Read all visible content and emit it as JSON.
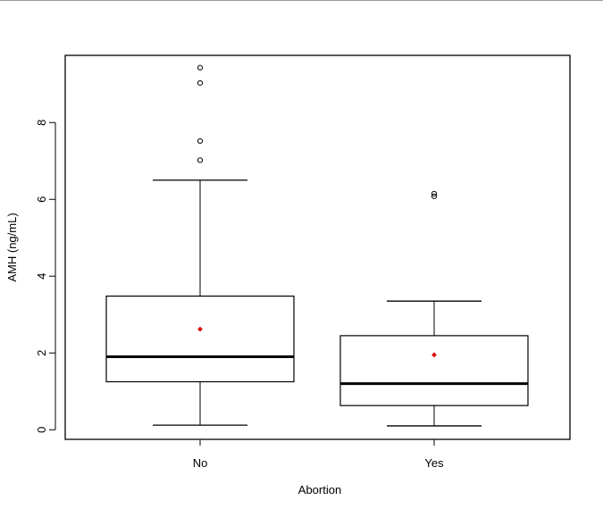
{
  "chart_data": {
    "type": "boxplot",
    "title": "",
    "xlabel": "Abortion",
    "ylabel": "AMH (ng/mL)",
    "categories": [
      "No",
      "Yes"
    ],
    "y_ticks": [
      "0",
      "2",
      "4",
      "6",
      "8"
    ],
    "ylim": [
      -0.25,
      9.75
    ],
    "grid": false,
    "legend": "none",
    "boxes": [
      {
        "category": "No",
        "whisker_low": 0.12,
        "q1": 1.25,
        "median": 1.9,
        "q3": 3.48,
        "whisker_high": 6.5,
        "mean": 2.62,
        "outliers": [
          7.02,
          7.52,
          9.03,
          9.43
        ]
      },
      {
        "category": "Yes",
        "whisker_low": 0.1,
        "q1": 0.63,
        "median": 1.2,
        "q3": 2.45,
        "whisker_high": 3.35,
        "mean": 1.95,
        "outliers": [
          6.08,
          6.15
        ]
      }
    ],
    "colors": {
      "box": "#000000",
      "mean_marker": "#e00000"
    }
  }
}
